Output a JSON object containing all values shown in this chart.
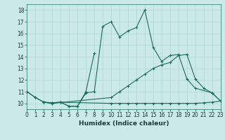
{
  "xlabel": "Humidex (Indice chaleur)",
  "xlim": [
    0,
    23
  ],
  "ylim": [
    9.5,
    18.5
  ],
  "xtick_labels": [
    "0",
    "1",
    "2",
    "3",
    "4",
    "5",
    "6",
    "7",
    "8",
    "9",
    "10",
    "11",
    "12",
    "13",
    "14",
    "15",
    "16",
    "17",
    "18",
    "19",
    "20",
    "21",
    "22",
    "23"
  ],
  "yticks": [
    10,
    11,
    12,
    13,
    14,
    15,
    16,
    17,
    18
  ],
  "background_color": "#cce9ea",
  "grid_color": "#aed4d5",
  "line_color": "#1a6b5a",
  "line1_x": [
    0,
    1,
    2,
    3,
    4,
    5,
    6,
    7,
    8,
    9,
    10,
    11,
    12,
    13,
    14,
    15,
    16,
    17,
    18,
    19,
    20,
    22,
    23
  ],
  "line1_y": [
    11.0,
    10.5,
    10.1,
    10.05,
    10.1,
    9.75,
    9.75,
    10.9,
    11.0,
    16.6,
    17.0,
    15.7,
    16.2,
    16.5,
    18.0,
    14.8,
    13.6,
    14.1,
    14.2,
    12.1,
    11.3,
    10.9,
    10.2
  ],
  "line2_x": [
    0,
    1,
    2,
    3,
    4,
    5,
    6,
    7,
    8
  ],
  "line2_y": [
    11.0,
    10.5,
    10.1,
    10.05,
    10.1,
    9.75,
    9.75,
    11.0,
    14.3
  ],
  "line3_x": [
    2,
    3,
    4,
    10,
    11,
    12,
    13,
    14,
    15,
    16,
    17,
    18,
    19,
    20,
    21,
    22,
    23
  ],
  "line3_y": [
    10.1,
    10.0,
    10.1,
    10.0,
    10.0,
    10.0,
    10.0,
    10.0,
    10.0,
    10.0,
    10.0,
    10.0,
    10.0,
    10.0,
    10.05,
    10.1,
    10.2
  ],
  "line4_x": [
    2,
    3,
    10,
    11,
    12,
    13,
    14,
    15,
    16,
    17,
    18,
    19,
    20,
    21,
    22,
    23
  ],
  "line4_y": [
    10.1,
    10.0,
    10.5,
    11.0,
    11.5,
    12.0,
    12.5,
    13.0,
    13.3,
    13.5,
    14.1,
    14.2,
    12.1,
    11.3,
    10.9,
    10.2
  ]
}
